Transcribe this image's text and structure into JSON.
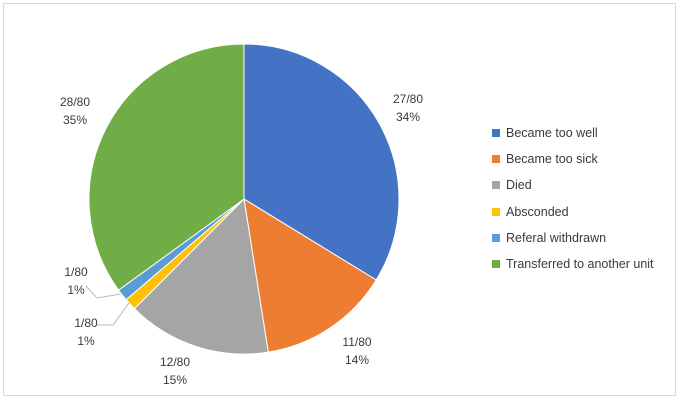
{
  "chart_data": {
    "type": "pie",
    "title": "",
    "total": 80,
    "start_angle_deg": 0,
    "direction": "clockwise",
    "legend_position": "right",
    "series": [
      {
        "name": "Became too well",
        "count": 27,
        "fraction": "27/80",
        "percent": "34%",
        "color": "#4472c4"
      },
      {
        "name": "Became too sick",
        "count": 11,
        "fraction": "11/80",
        "percent": "14%",
        "color": "#ed7d31"
      },
      {
        "name": "Died",
        "count": 12,
        "fraction": "12/80",
        "percent": "15%",
        "color": "#a5a5a5"
      },
      {
        "name": "Absconded",
        "count": 1,
        "fraction": "1/80",
        "percent": "1%",
        "color": "#ffc000"
      },
      {
        "name": "Referal withdrawn",
        "count": 1,
        "fraction": "1/80",
        "percent": "1%",
        "color": "#5b9bd5"
      },
      {
        "name": "Transferred to another unit",
        "count": 28,
        "fraction": "28/80",
        "percent": "35%",
        "color": "#70ad47"
      }
    ]
  }
}
